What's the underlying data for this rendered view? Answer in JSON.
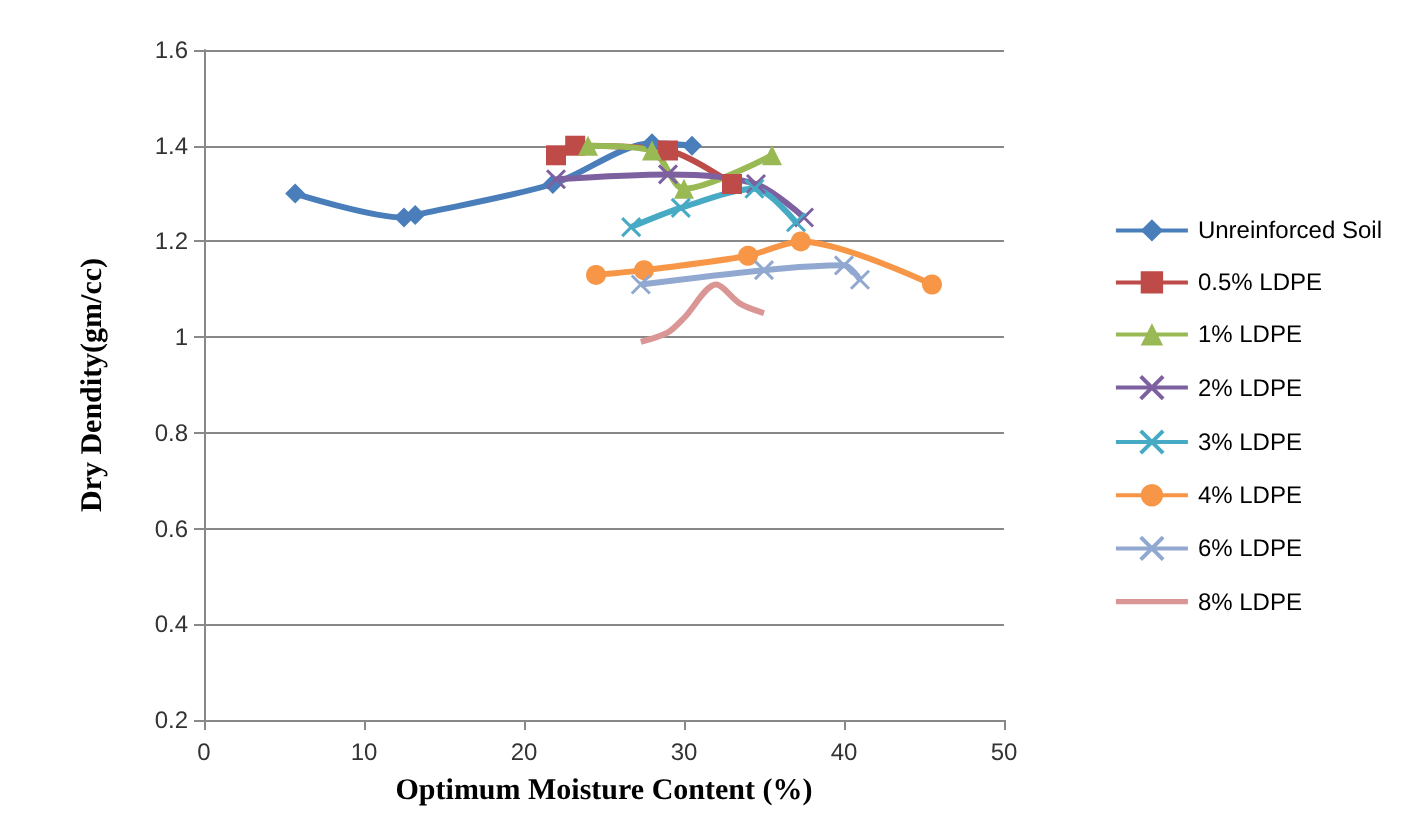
{
  "chart_data": {
    "type": "line",
    "xlabel": "Optimum Moisture Content (%)",
    "ylabel": "Dry Dendity(gm/cc)",
    "xlim": [
      0,
      50
    ],
    "xticks": [
      0,
      10,
      20,
      30,
      40,
      50
    ],
    "ylim": [
      0.2,
      1.6
    ],
    "yticks": [
      0.2,
      0.4,
      0.6,
      0.8,
      1,
      1.2,
      1.4,
      1.6
    ],
    "legend": "right",
    "grid": "y",
    "series": [
      {
        "name": "Unreinforced Soil",
        "color": "#4a7ebb",
        "marker": "diamond",
        "x": [
          5.7,
          12.5,
          13.2,
          21.8,
          28,
          30.5
        ],
        "values": [
          1.3,
          1.25,
          1.255,
          1.32,
          1.405,
          1.4
        ]
      },
      {
        "name": "0.5% LDPE",
        "color": "#be4b48",
        "marker": "square",
        "x": [
          22,
          23.2,
          29,
          33
        ],
        "values": [
          1.38,
          1.4,
          1.39,
          1.32
        ]
      },
      {
        "name": "1% LDPE",
        "color": "#98b954",
        "marker": "triangle",
        "x": [
          24,
          28,
          30,
          35.5
        ],
        "values": [
          1.4,
          1.39,
          1.31,
          1.38
        ]
      },
      {
        "name": "2% LDPE",
        "color": "#7d60a0",
        "marker": "cross",
        "x": [
          22,
          29,
          34.5,
          37.5
        ],
        "values": [
          1.33,
          1.34,
          1.32,
          1.25
        ]
      },
      {
        "name": "3% LDPE",
        "color": "#46aac5",
        "marker": "cross",
        "x": [
          26.7,
          29.8,
          34.4,
          37
        ],
        "values": [
          1.23,
          1.27,
          1.31,
          1.24
        ]
      },
      {
        "name": "4% LDPE",
        "color": "#f79646",
        "marker": "circle",
        "x": [
          24.5,
          27.5,
          34,
          37.3,
          45.5
        ],
        "values": [
          1.13,
          1.14,
          1.17,
          1.2,
          1.11
        ]
      },
      {
        "name": "6% LDPE",
        "color": "#91a8d0",
        "marker": "cross",
        "x": [
          27.3,
          35,
          40,
          41
        ],
        "values": [
          1.11,
          1.14,
          1.15,
          1.12
        ]
      },
      {
        "name": "8% LDPE",
        "color": "#d99694",
        "marker": "none",
        "x": [
          27.3,
          29,
          30,
          32,
          33.5,
          35
        ],
        "values": [
          0.99,
          1.01,
          1.04,
          1.11,
          1.07,
          1.05
        ]
      }
    ]
  }
}
